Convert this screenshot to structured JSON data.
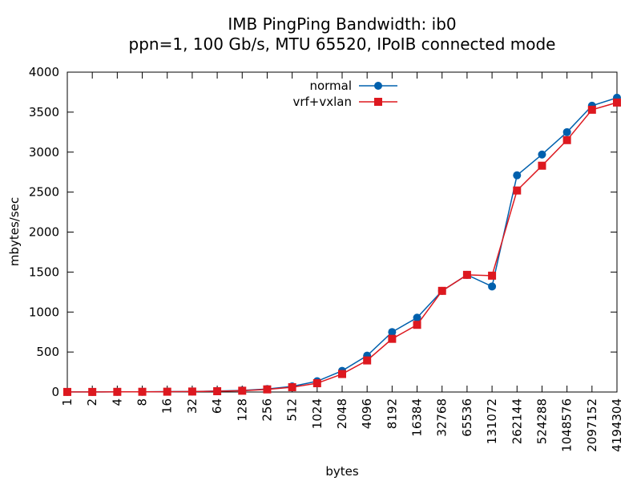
{
  "chart_data": {
    "type": "line",
    "title": "IMB PingPing Bandwidth: ib0",
    "subtitle": "ppn=1, 100 Gb/s, MTU 65520, IPoIB connected mode",
    "xlabel": "bytes",
    "ylabel": "mbytes/sec",
    "categories": [
      "1",
      "2",
      "4",
      "8",
      "16",
      "32",
      "64",
      "128",
      "256",
      "512",
      "1024",
      "2048",
      "4096",
      "8192",
      "16384",
      "32768",
      "65536",
      "131072",
      "262144",
      "524288",
      "1048576",
      "2097152",
      "4194304"
    ],
    "ylim": [
      0,
      4000
    ],
    "yticks": [
      "0",
      "500",
      "1000",
      "1500",
      "2000",
      "2500",
      "3000",
      "3500",
      "4000"
    ],
    "grid": false,
    "legend_position": "top-center",
    "series": [
      {
        "name": "normal",
        "color": "#0060ad",
        "marker": "circle",
        "values": [
          1,
          1,
          2,
          3,
          5,
          6,
          12,
          20,
          38,
          70,
          135,
          265,
          455,
          750,
          930,
          1265,
          1465,
          1320,
          2710,
          2970,
          3250,
          3580,
          3680
        ]
      },
      {
        "name": "vrf+vxlan",
        "color": "#dd181f",
        "marker": "square",
        "values": [
          1,
          1,
          2,
          3,
          4,
          6,
          10,
          16,
          33,
          60,
          110,
          225,
          395,
          665,
          840,
          1265,
          1465,
          1455,
          2520,
          2830,
          3150,
          3530,
          3620
        ]
      }
    ]
  }
}
